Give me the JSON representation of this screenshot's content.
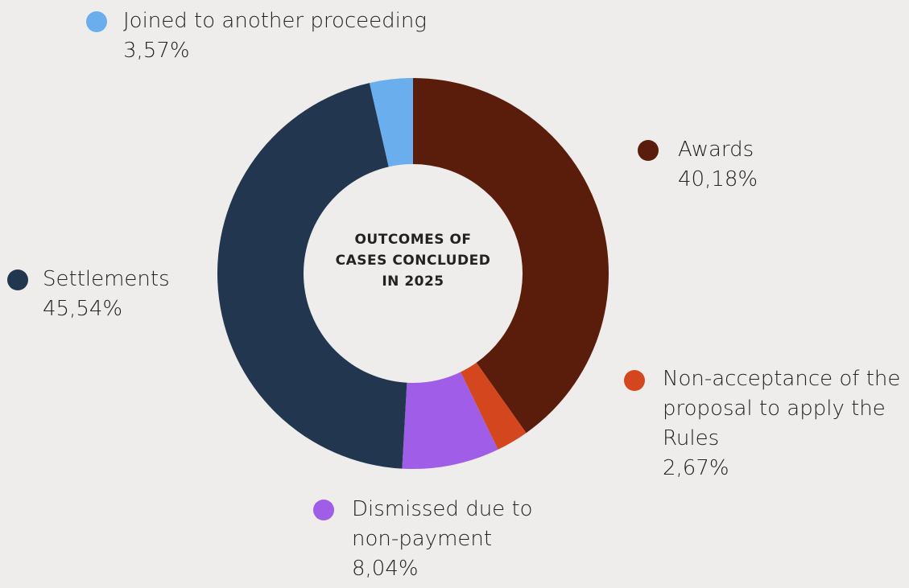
{
  "chart_data": {
    "type": "pie",
    "title": "OUTCOMES OF CASES CONCLUDED IN 2025",
    "categories": [
      "Awards",
      "Non-acceptance of the proposal to apply the Rules",
      "Dismissed due to non-payment",
      "Settlements",
      "Joined to another proceeding"
    ],
    "values": [
      40.18,
      2.67,
      8.04,
      45.54,
      3.57
    ],
    "value_labels": [
      "40,18%",
      "2,67%",
      "8,04%",
      "45,54%",
      "3,57%"
    ],
    "colors": [
      "#5a1d0c",
      "#d4461e",
      "#a05de8",
      "#22374f",
      "#6aaeed"
    ]
  }
}
